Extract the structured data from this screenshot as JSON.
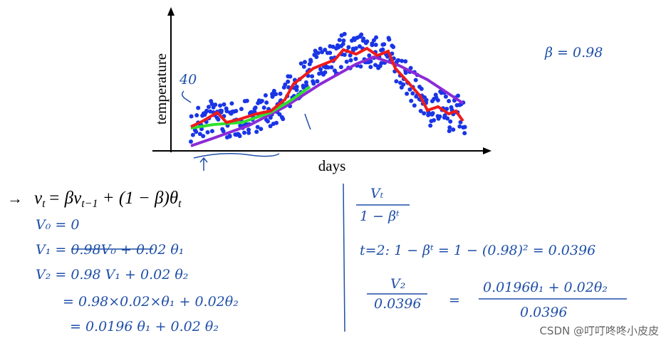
{
  "chart": {
    "y_label": "temperature",
    "x_label": "days",
    "note_40": "40"
  },
  "beta_note": "β = 0.98",
  "formula": {
    "lhs": "v",
    "lhs_sub": "t",
    "rhs": "= βv",
    "rhs_sub1": "t−1",
    "rhs2": " + (1 − β)θ",
    "rhs_sub2": "t"
  },
  "left_notes": [
    "V₀ = 0",
    "V₁ = 0.98V₀ + 0.02 θ₁",
    "V₂ = 0.98 V₁ + 0.02 θ₂",
    "= 0.98×0.02×θ₁ + 0.02θ₂",
    "= 0.0196 θ₁ + 0.02 θ₂"
  ],
  "right_notes": {
    "frac_top": "Vₜ",
    "frac_bottom": "1 − βᵗ",
    "t2_line": "t=2:   1 − βᵗ  =  1 − (0.98)²  =  0.0396",
    "v2_top": "V₂",
    "v2_bottom": "0.0396",
    "equals": "=",
    "rhs_top": "0.0196θ₁ + 0.02θ₂",
    "rhs_bottom": "0.0396"
  },
  "watermark": "CSDN @叮叮咚咚小皮皮"
}
